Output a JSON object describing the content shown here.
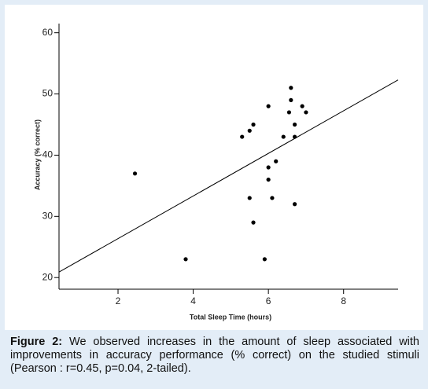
{
  "chart_data": {
    "type": "scatter",
    "x_label": "Total Sleep Time (hours)",
    "y_label": "Accuracy (% correct)",
    "x": [
      2.45,
      3.8,
      5.3,
      5.5,
      5.6,
      5.5,
      5.6,
      5.9,
      6.0,
      6.0,
      6.0,
      6.1,
      6.2,
      6.4,
      6.55,
      6.6,
      6.6,
      6.7,
      6.7,
      6.7,
      6.9,
      7.0
    ],
    "values": [
      37,
      23,
      43,
      44,
      45,
      33,
      29,
      23,
      48,
      38,
      36,
      33,
      39,
      43,
      47,
      51,
      49,
      45,
      43,
      32,
      48,
      47
    ],
    "color": "#000000",
    "fit_line": {
      "x": [
        0.43,
        9.45
      ],
      "y": [
        20.9,
        52.3
      ]
    },
    "xlim": [
      0.43,
      9.45
    ],
    "ylim": [
      18.1,
      61.5
    ],
    "xticks": [
      2,
      4,
      6,
      8
    ],
    "yticks": [
      20,
      30,
      40,
      50,
      60
    ]
  },
  "caption": {
    "label": "Figure 2:",
    "text": "We observed increases in the amount of sleep associated with improvements in accuracy performance (% correct) on the studied stimuli (Pearson : r=0.45, p=0.04, 2-tailed)."
  }
}
